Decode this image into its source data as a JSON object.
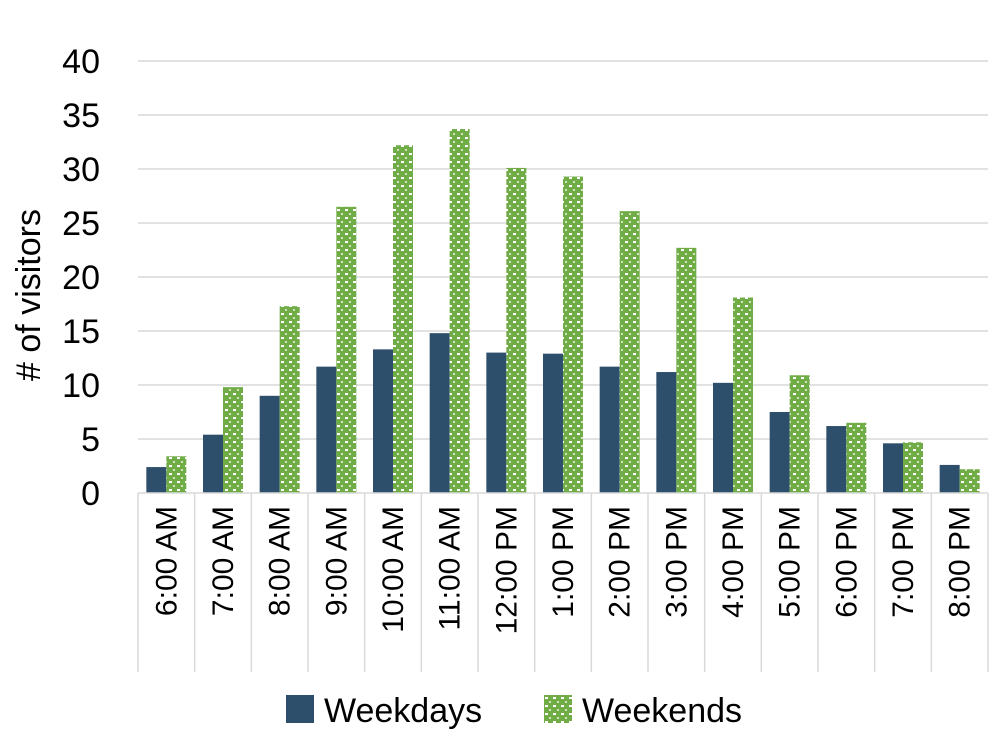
{
  "chart_data": {
    "type": "bar",
    "title": "",
    "xlabel": "",
    "ylabel": "# of visitors",
    "ylim": [
      0,
      40
    ],
    "yticks": [
      "0",
      "5",
      "10",
      "15",
      "20",
      "25",
      "30",
      "35",
      "40"
    ],
    "grid": "horizontal",
    "legend_position": "bottom",
    "categories": [
      "6:00 AM",
      "7:00 AM",
      "8:00 AM",
      "9:00 AM",
      "10:00 AM",
      "11:00 AM",
      "12:00 PM",
      "1:00 PM",
      "2:00 PM",
      "3:00 PM",
      "4:00 PM",
      "5:00 PM",
      "6:00 PM",
      "7:00 PM",
      "8:00 PM"
    ],
    "series": [
      {
        "name": "Weekdays",
        "color": "#2e4f6b",
        "pattern": "solid",
        "values": [
          2.4,
          5.4,
          9.0,
          11.7,
          13.3,
          14.8,
          13.0,
          12.9,
          11.7,
          11.2,
          10.2,
          7.5,
          6.2,
          4.6,
          2.6
        ]
      },
      {
        "name": "Weekends",
        "color": "#70ad47",
        "pattern": "dotted",
        "values": [
          3.4,
          9.8,
          17.3,
          26.5,
          32.2,
          33.7,
          30.1,
          29.3,
          26.1,
          22.7,
          18.1,
          10.9,
          6.5,
          4.7,
          2.2
        ]
      }
    ]
  }
}
